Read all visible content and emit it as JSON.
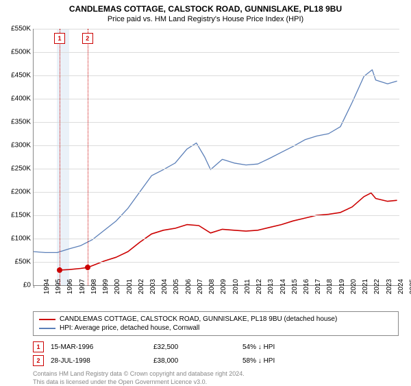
{
  "title": "CANDLEMAS COTTAGE, CALSTOCK ROAD, GUNNISLAKE, PL18 9BU",
  "subtitle": "Price paid vs. HM Land Registry's House Price Index (HPI)",
  "chart": {
    "type": "line",
    "x_min_year": 1994,
    "x_max_year": 2025,
    "ylim": [
      0,
      550000
    ],
    "ytick_step": 50000,
    "y_labels": [
      "£0",
      "£50K",
      "£100K",
      "£150K",
      "£200K",
      "£250K",
      "£300K",
      "£350K",
      "£400K",
      "£450K",
      "£500K",
      "£550K"
    ],
    "x_labels": [
      "1994",
      "1995",
      "1996",
      "1997",
      "1998",
      "1999",
      "2000",
      "2001",
      "2002",
      "2003",
      "2004",
      "2005",
      "2006",
      "2007",
      "2008",
      "2009",
      "2010",
      "2011",
      "2012",
      "2013",
      "2014",
      "2015",
      "2016",
      "2017",
      "2018",
      "2019",
      "2020",
      "2021",
      "2022",
      "2023",
      "2024",
      "2025"
    ],
    "grid_color": "#dcdcdc",
    "axis_color": "#888888",
    "background_color": "#ffffff",
    "band_color": "#eaf1f8",
    "band": {
      "start_year": 1996,
      "end_year": 1997
    },
    "series_property": {
      "label": "CANDLEMAS COTTAGE, CALSTOCK ROAD, GUNNISLAKE, PL18 9BU (detached house)",
      "color": "#cc0000",
      "line_width": 1.6,
      "points": [
        [
          1996.21,
          32500
        ],
        [
          1997,
          33500
        ],
        [
          1998,
          36000
        ],
        [
          1998.57,
          38000
        ],
        [
          1999,
          42000
        ],
        [
          2000,
          52000
        ],
        [
          2001,
          60000
        ],
        [
          2002,
          72000
        ],
        [
          2003,
          92000
        ],
        [
          2004,
          110000
        ],
        [
          2005,
          118000
        ],
        [
          2006,
          122000
        ],
        [
          2007,
          130000
        ],
        [
          2008,
          128000
        ],
        [
          2009,
          112000
        ],
        [
          2010,
          120000
        ],
        [
          2011,
          118000
        ],
        [
          2012,
          116000
        ],
        [
          2013,
          118000
        ],
        [
          2014,
          124000
        ],
        [
          2015,
          130000
        ],
        [
          2016,
          138000
        ],
        [
          2017,
          144000
        ],
        [
          2018,
          150000
        ],
        [
          2019,
          152000
        ],
        [
          2020,
          156000
        ],
        [
          2021,
          168000
        ],
        [
          2022,
          190000
        ],
        [
          2022.6,
          198000
        ],
        [
          2023,
          186000
        ],
        [
          2024,
          180000
        ],
        [
          2024.8,
          182000
        ]
      ]
    },
    "series_hpi": {
      "label": "HPI: Average price, detached house, Cornwall",
      "color": "#5b7fb8",
      "line_width": 1.3,
      "points": [
        [
          1994,
          72000
        ],
        [
          1995,
          70000
        ],
        [
          1996,
          70000
        ],
        [
          1997,
          78000
        ],
        [
          1998,
          85000
        ],
        [
          1999,
          98000
        ],
        [
          2000,
          118000
        ],
        [
          2001,
          138000
        ],
        [
          2002,
          165000
        ],
        [
          2003,
          200000
        ],
        [
          2004,
          235000
        ],
        [
          2005,
          248000
        ],
        [
          2006,
          262000
        ],
        [
          2007,
          292000
        ],
        [
          2007.8,
          305000
        ],
        [
          2008.5,
          275000
        ],
        [
          2009,
          248000
        ],
        [
          2010,
          270000
        ],
        [
          2011,
          262000
        ],
        [
          2012,
          258000
        ],
        [
          2013,
          260000
        ],
        [
          2014,
          272000
        ],
        [
          2015,
          285000
        ],
        [
          2016,
          298000
        ],
        [
          2017,
          312000
        ],
        [
          2018,
          320000
        ],
        [
          2019,
          325000
        ],
        [
          2020,
          340000
        ],
        [
          2021,
          392000
        ],
        [
          2022,
          448000
        ],
        [
          2022.7,
          462000
        ],
        [
          2023,
          440000
        ],
        [
          2024,
          432000
        ],
        [
          2024.8,
          438000
        ]
      ]
    },
    "markers": [
      {
        "num": "1",
        "year": 1996.21,
        "price": 32500
      },
      {
        "num": "2",
        "year": 1998.57,
        "price": 38000
      }
    ],
    "marker_dot_color": "#cc0000",
    "marker_line_color": "#cc0000",
    "label_fontsize": 10,
    "title_fontsize": 12
  },
  "legend": {
    "events": [
      {
        "num": "1",
        "date": "15-MAR-1996",
        "price": "£32,500",
        "hpi": "54% ↓ HPI"
      },
      {
        "num": "2",
        "date": "28-JUL-1998",
        "price": "£38,000",
        "hpi": "58% ↓ HPI"
      }
    ]
  },
  "footnote_line1": "Contains HM Land Registry data © Crown copyright and database right 2024.",
  "footnote_line2": "This data is licensed under the Open Government Licence v3.0."
}
